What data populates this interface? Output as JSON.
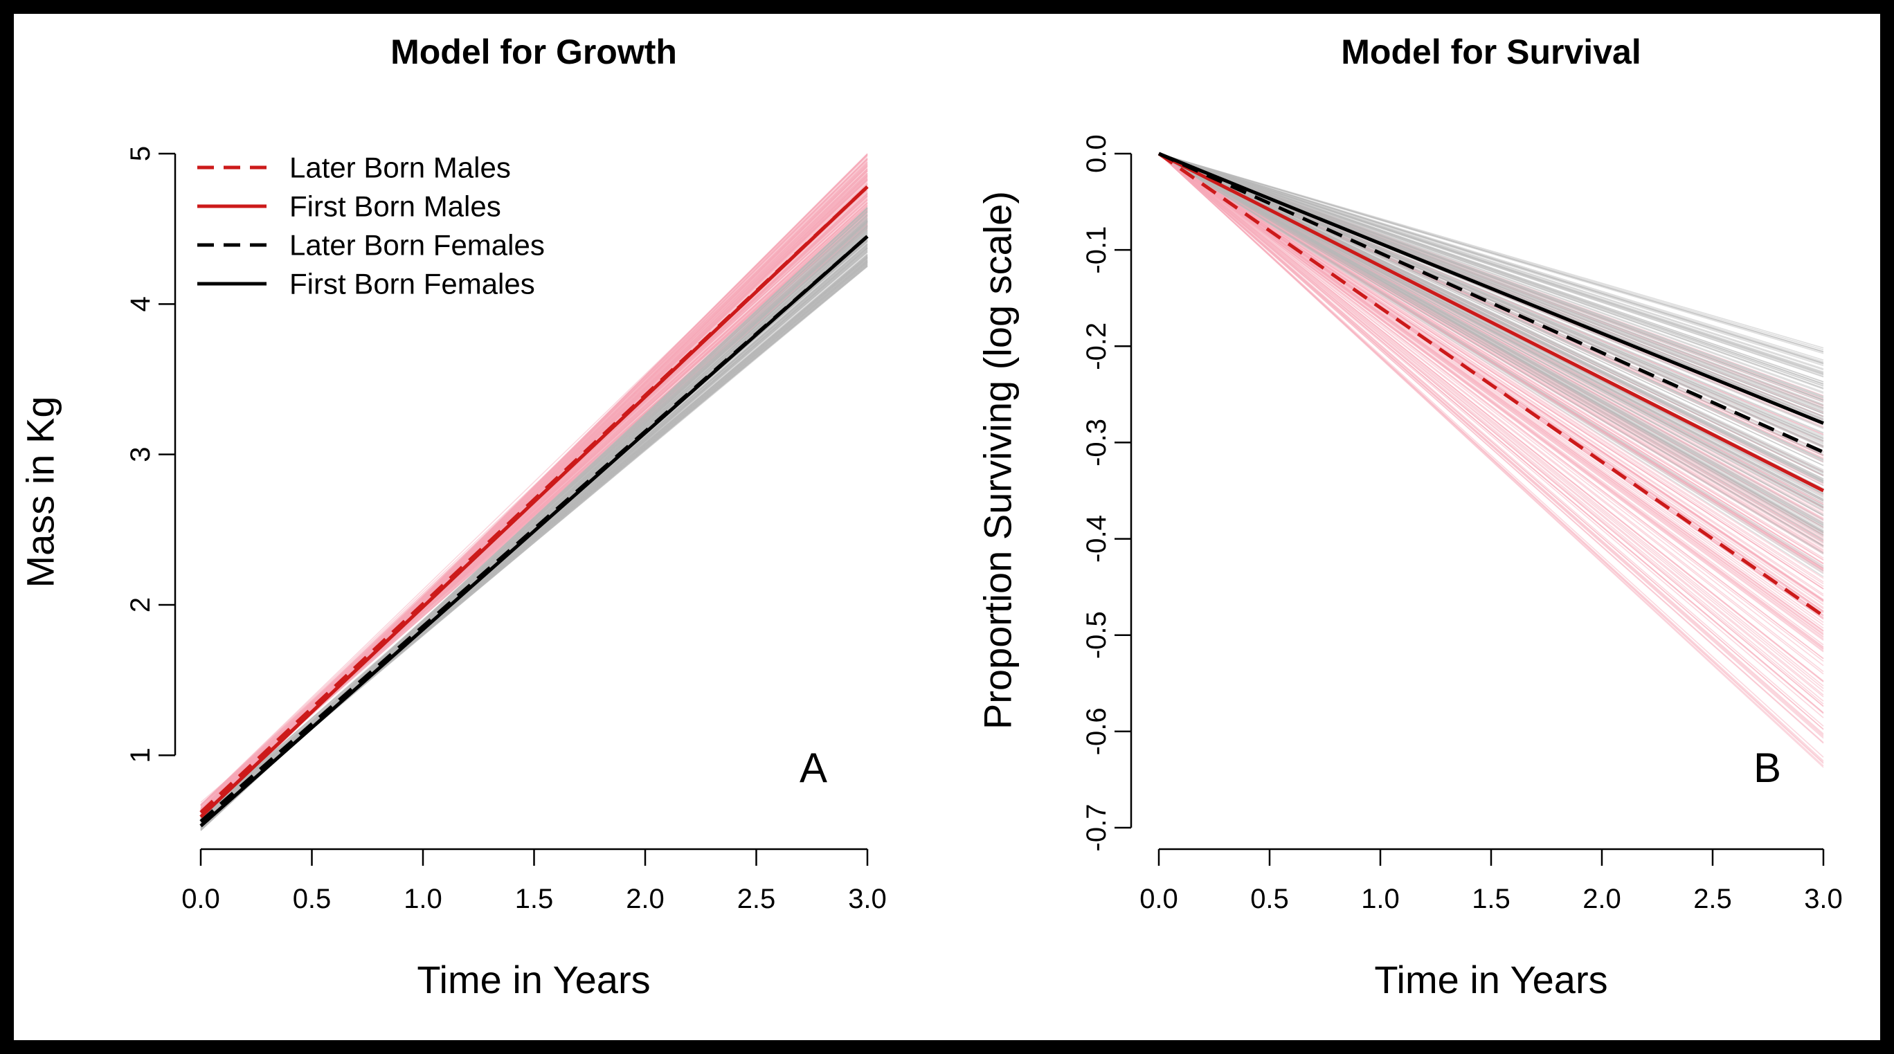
{
  "chart_data": [
    {
      "type": "line",
      "title": "Model for Growth",
      "xlabel": "Time in Years",
      "ylabel": "Mass in Kg",
      "panel_label": "A",
      "xlim": [
        0,
        3
      ],
      "ylim": [
        0.5,
        5
      ],
      "x_ticks": [
        0.0,
        0.5,
        1.0,
        1.5,
        2.0,
        2.5,
        3.0
      ],
      "x_tick_labels": [
        "0.0",
        "0.5",
        "1.0",
        "1.5",
        "2.0",
        "2.5",
        "3.0"
      ],
      "y_ticks": [
        1,
        2,
        3,
        4,
        5
      ],
      "y_tick_labels": [
        "1",
        "2",
        "3",
        "4",
        "5"
      ],
      "grid": false,
      "legend_position": "top-left",
      "series": [
        {
          "name": "Later Born Males",
          "color": "#cc1a1a",
          "dash": "dashed",
          "x": [
            0,
            3
          ],
          "y": [
            0.62,
            4.78
          ],
          "band_color": "#f7a8b8",
          "band_y_end": [
            4.5,
            5.0
          ],
          "band_y_start": [
            0.57,
            0.67
          ]
        },
        {
          "name": "First Born Males",
          "color": "#cc1a1a",
          "dash": "solid",
          "x": [
            0,
            3
          ],
          "y": [
            0.59,
            4.78
          ],
          "band_color": "#f7a8b8",
          "band_y_end": [
            4.5,
            5.0
          ],
          "band_y_start": [
            0.55,
            0.64
          ]
        },
        {
          "name": "Later Born Females",
          "color": "#000000",
          "dash": "dashed",
          "x": [
            0,
            3
          ],
          "y": [
            0.56,
            4.45
          ],
          "band_color": "#b8b8b8",
          "band_y_end": [
            4.25,
            4.65
          ],
          "band_y_start": [
            0.52,
            0.6
          ]
        },
        {
          "name": "First Born Females",
          "color": "#000000",
          "dash": "solid",
          "x": [
            0,
            3
          ],
          "y": [
            0.53,
            4.45
          ],
          "band_color": "#b8b8b8",
          "band_y_end": [
            4.25,
            4.65
          ],
          "band_y_start": [
            0.5,
            0.57
          ]
        }
      ]
    },
    {
      "type": "line",
      "title": "Model for Survival",
      "xlabel": "Time in Years",
      "ylabel": "Proportion Surviving (log scale)",
      "panel_label": "B",
      "xlim": [
        0,
        3
      ],
      "ylim": [
        -0.7,
        0
      ],
      "x_ticks": [
        0.0,
        0.5,
        1.0,
        1.5,
        2.0,
        2.5,
        3.0
      ],
      "x_tick_labels": [
        "0.0",
        "0.5",
        "1.0",
        "1.5",
        "2.0",
        "2.5",
        "3.0"
      ],
      "y_ticks": [
        0.0,
        -0.1,
        -0.2,
        -0.3,
        -0.4,
        -0.5,
        -0.6,
        -0.7
      ],
      "y_tick_labels": [
        "0.0",
        "-0.1",
        "-0.2",
        "-0.3",
        "-0.4",
        "-0.5",
        "-0.6",
        "-0.7"
      ],
      "grid": false,
      "series": [
        {
          "name": "Later Born Males",
          "color": "#cc1a1a",
          "dash": "dashed",
          "x": [
            0,
            3
          ],
          "y": [
            0,
            -0.48
          ],
          "band_color": "#f7a8b8",
          "band_y_end": [
            -0.31,
            -0.64
          ]
        },
        {
          "name": "First Born Males",
          "color": "#cc1a1a",
          "dash": "solid",
          "x": [
            0,
            3
          ],
          "y": [
            0,
            -0.35
          ],
          "band_color": "#f7a8b8",
          "band_y_end": [
            -0.25,
            -0.5
          ]
        },
        {
          "name": "Later Born Females",
          "color": "#000000",
          "dash": "dashed",
          "x": [
            0,
            3
          ],
          "y": [
            0,
            -0.31
          ],
          "band_color": "#b8b8b8",
          "band_y_end": [
            -0.2,
            -0.44
          ]
        },
        {
          "name": "First Born Females",
          "color": "#000000",
          "dash": "solid",
          "x": [
            0,
            3
          ],
          "y": [
            0,
            -0.28
          ],
          "band_color": "#b8b8b8",
          "band_y_end": [
            -0.2,
            -0.4
          ]
        }
      ]
    }
  ]
}
